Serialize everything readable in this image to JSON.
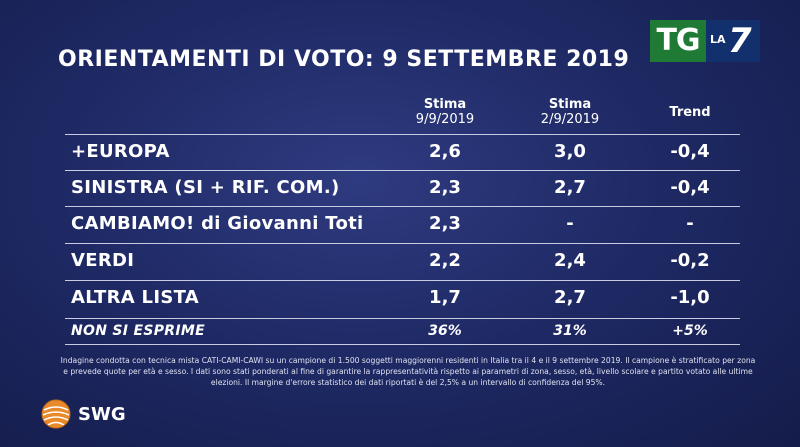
{
  "title": "ORIENTAMENTI DI VOTO: 9 SETTEMBRE 2019",
  "logo": {
    "tg": "TG",
    "la": "LA",
    "seven": "7"
  },
  "headers": {
    "col1_label": "Stima",
    "col1_date": "9/9/2019",
    "col2_label": "Stima",
    "col2_date": "2/9/2019",
    "col3_label": "Trend"
  },
  "rows": [
    {
      "name": "+EUROPA",
      "v1": "2,6",
      "v2": "3,0",
      "trend": "-0,4"
    },
    {
      "name": "SINISTRA (SI + RIF. COM.)",
      "v1": "2,3",
      "v2": "2,7",
      "trend": "-0,4"
    },
    {
      "name": "CAMBIAMO! di Giovanni Toti",
      "v1": "2,3",
      "v2": "-",
      "trend": "-"
    },
    {
      "name": "VERDI",
      "v1": "2,2",
      "v2": "2,4",
      "trend": "-0,2"
    },
    {
      "name": "ALTRA LISTA",
      "v1": "1,7",
      "v2": "2,7",
      "trend": "-1,0"
    },
    {
      "name": "NON SI ESPRIME",
      "v1": "36%",
      "v2": "31%",
      "trend": "+5%"
    }
  ],
  "note": "Indagine condotta con tecnica mista CATI-CAMI-CAWI su un campione di 1.500 soggetti maggiorenni residenti in Italia tra il 4 e il 9 settembre 2019. Il campione è stratificato per zona e prevede quote per età e sesso. I dati sono stati ponderati al fine di garantire la rappresentatività rispetto ai parametri di zona, sesso, età, livello scolare e partito votato alle ultime elezioni. Il margine d'errore statistico dei dati riportati è del 2,5% a un intervallo di confidenza del 95%.",
  "brand": "SWG",
  "colors": {
    "tg_green": "#1e7a34",
    "la7_blue": "#12306e",
    "swg_orange": "#e8892a"
  }
}
